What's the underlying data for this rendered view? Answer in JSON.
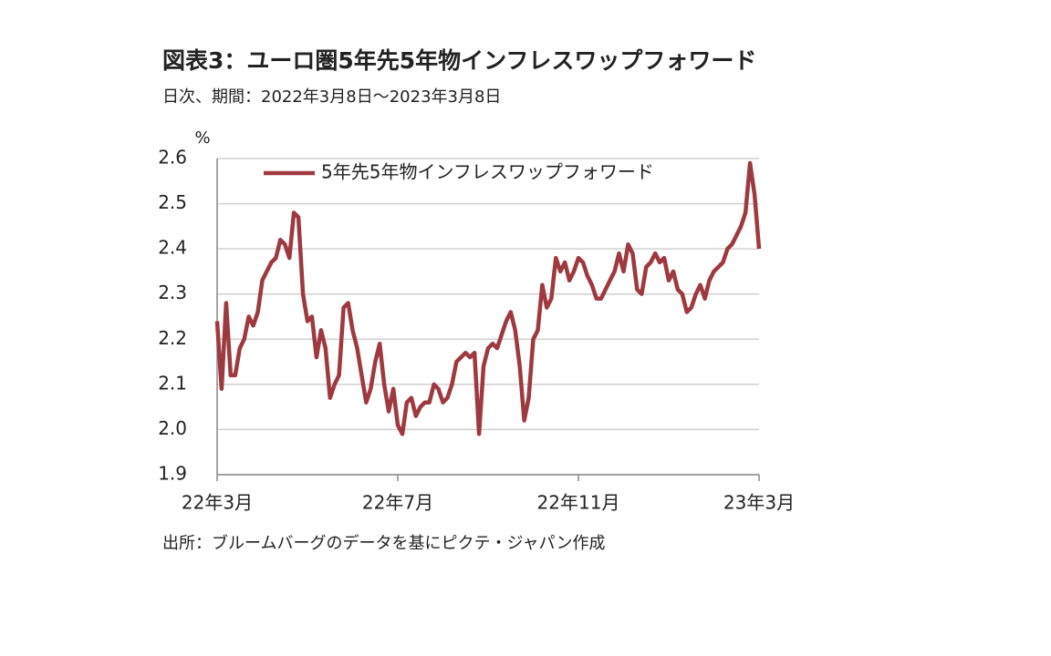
{
  "chart_data": {
    "type": "line",
    "title": "図表3：ユーロ圏5年先5年物インフレスワップフォワード",
    "subtitle": "日次、期間：2022年3月8日～2023年3月8日",
    "y_axis_label": "%",
    "source": "出所：ブルームバーグのデータを基にピクテ・ジャパン作成",
    "categories": [
      "22年3月",
      null,
      null,
      null,
      null,
      null,
      null,
      null,
      null,
      null,
      null,
      null,
      null,
      null,
      null,
      null,
      null,
      null,
      null,
      null,
      null,
      null,
      null,
      null,
      null,
      null,
      null,
      null,
      null,
      null,
      null,
      null,
      null,
      null,
      null,
      null,
      null,
      null,
      null,
      null,
      "22年7月",
      null,
      null,
      null,
      null,
      null,
      null,
      null,
      null,
      null,
      null,
      null,
      null,
      null,
      null,
      null,
      null,
      null,
      null,
      null,
      null,
      null,
      null,
      null,
      null,
      null,
      null,
      null,
      null,
      null,
      null,
      null,
      null,
      null,
      null,
      null,
      null,
      null,
      null,
      null,
      "22年11月",
      null,
      null,
      null,
      null,
      null,
      null,
      null,
      null,
      null,
      null,
      null,
      null,
      null,
      null,
      null,
      null,
      null,
      null,
      null,
      null,
      null,
      null,
      null,
      null,
      null,
      null,
      null,
      null,
      null,
      null,
      null,
      null,
      null,
      null,
      null,
      null,
      null,
      null,
      null,
      "23年3月"
    ],
    "series": [
      {
        "name": "5年先5年物インフレスワップフォワード",
        "color": "#9e3a3f",
        "values": [
          2.24,
          2.09,
          2.28,
          2.12,
          2.12,
          2.18,
          2.2,
          2.25,
          2.23,
          2.26,
          2.33,
          2.35,
          2.37,
          2.38,
          2.42,
          2.41,
          2.38,
          2.48,
          2.47,
          2.3,
          2.24,
          2.25,
          2.16,
          2.22,
          2.18,
          2.07,
          2.1,
          2.12,
          2.27,
          2.28,
          2.22,
          2.18,
          2.12,
          2.06,
          2.09,
          2.15,
          2.19,
          2.1,
          2.04,
          2.09,
          2.01,
          1.99,
          2.06,
          2.07,
          2.03,
          2.05,
          2.06,
          2.06,
          2.1,
          2.09,
          2.06,
          2.07,
          2.1,
          2.15,
          2.16,
          2.17,
          2.16,
          2.17,
          1.99,
          2.14,
          2.18,
          2.19,
          2.18,
          2.21,
          2.24,
          2.26,
          2.22,
          2.14,
          2.02,
          2.07,
          2.2,
          2.22,
          2.32,
          2.27,
          2.29,
          2.38,
          2.35,
          2.37,
          2.33,
          2.35,
          2.38,
          2.37,
          2.34,
          2.32,
          2.29,
          2.29,
          2.31,
          2.33,
          2.35,
          2.39,
          2.35,
          2.41,
          2.39,
          2.31,
          2.3,
          2.36,
          2.37,
          2.39,
          2.37,
          2.38,
          2.33,
          2.35,
          2.31,
          2.3,
          2.26,
          2.27,
          2.3,
          2.32,
          2.29,
          2.33,
          2.35,
          2.36,
          2.37,
          2.4,
          2.41,
          2.43,
          2.45,
          2.48,
          2.59,
          2.52,
          2.4
        ]
      }
    ],
    "ylim": [
      1.9,
      2.6
    ],
    "yticks": [
      1.9,
      {
        "value": 2.0,
        "label": "2.0"
      },
      2.1,
      2.2,
      2.3,
      2.4,
      2.5,
      2.6
    ],
    "grid": true,
    "legend": "top"
  }
}
